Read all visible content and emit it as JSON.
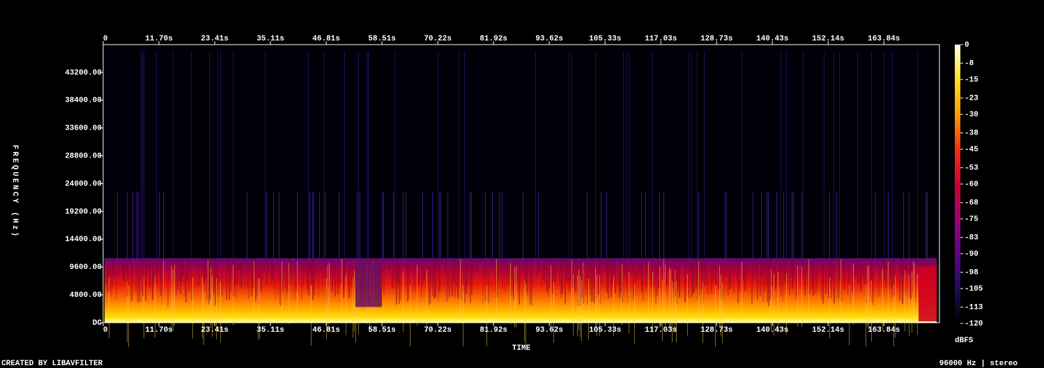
{
  "chart_data": {
    "type": "spectrogram",
    "y_label": "FREQUENCY (Hz)",
    "x_label": "TIME",
    "colorbar_label": "dBFS",
    "xlim": [
      0,
      175.5
    ],
    "xticks": [
      0,
      {
        "value": 11.7,
        "label": "11.70s"
      },
      {
        "value": 23.41,
        "label": "23.41s"
      },
      {
        "value": 35.11,
        "label": "35.11s"
      },
      {
        "value": 46.81,
        "label": "46.81s"
      },
      {
        "value": 58.51,
        "label": "58.51s"
      },
      {
        "value": 70.22,
        "label": "70.22s"
      },
      {
        "value": 81.92,
        "label": "81.92s"
      },
      {
        "value": 93.62,
        "label": "93.62s"
      },
      {
        "value": 105.33,
        "label": "105.33s"
      },
      {
        "value": 117.03,
        "label": "117.03s"
      },
      {
        "value": 128.73,
        "label": "128.73s"
      },
      {
        "value": 140.43,
        "label": "140.43s"
      },
      {
        "value": 152.14,
        "label": "152.14s"
      },
      {
        "value": 163.84,
        "label": "163.84s"
      }
    ],
    "ylim": [
      0,
      48000
    ],
    "yticks": [
      {
        "value": 0,
        "label": "DC"
      },
      {
        "value": 4800,
        "label": "4800.00"
      },
      {
        "value": 9600,
        "label": "9600.00"
      },
      {
        "value": 14400,
        "label": "14400.00"
      },
      {
        "value": 19200,
        "label": "19200.00"
      },
      {
        "value": 24000,
        "label": "24000.00"
      },
      {
        "value": 28800,
        "label": "28800.00"
      },
      {
        "value": 33600,
        "label": "33600.00"
      },
      {
        "value": 38400,
        "label": "38400.00"
      },
      {
        "value": 43200,
        "label": "43200.00"
      }
    ],
    "clim": [
      -120,
      0
    ],
    "cticks": [
      0,
      -8,
      -15,
      -23,
      -30,
      -38,
      -45,
      -53,
      -60,
      -68,
      -75,
      -83,
      -90,
      -98,
      -105,
      -113,
      -120
    ],
    "colormap": [
      "#ffffe8",
      "#ffe020",
      "#ff9a00",
      "#f03010",
      "#d00030",
      "#a00070",
      "#600090",
      "#200c58",
      "#000000"
    ]
  },
  "footer": {
    "left": "CREATED BY LIBAVFILTER",
    "right": "96000 Hz | stereo"
  }
}
